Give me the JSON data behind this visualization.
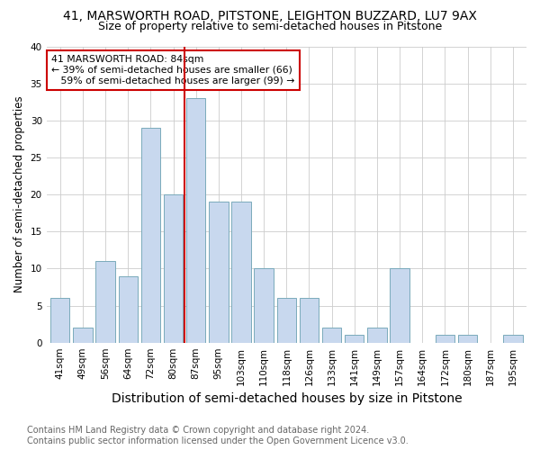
{
  "title": "41, MARSWORTH ROAD, PITSTONE, LEIGHTON BUZZARD, LU7 9AX",
  "subtitle": "Size of property relative to semi-detached houses in Pitstone",
  "xlabel": "Distribution of semi-detached houses by size in Pitstone",
  "ylabel": "Number of semi-detached properties",
  "categories": [
    "41sqm",
    "49sqm",
    "56sqm",
    "64sqm",
    "72sqm",
    "80sqm",
    "87sqm",
    "95sqm",
    "103sqm",
    "110sqm",
    "118sqm",
    "126sqm",
    "133sqm",
    "141sqm",
    "149sqm",
    "157sqm",
    "164sqm",
    "172sqm",
    "180sqm",
    "187sqm",
    "195sqm"
  ],
  "values": [
    6,
    2,
    11,
    9,
    29,
    20,
    33,
    19,
    19,
    10,
    6,
    6,
    2,
    1,
    2,
    10,
    0,
    1,
    1,
    0,
    1
  ],
  "bar_color": "#c8d8ee",
  "bar_edge_color": "#7aaabb",
  "highlight_index": 6,
  "highlight_line_color": "#cc0000",
  "annotation_text": "41 MARSWORTH ROAD: 84sqm\n← 39% of semi-detached houses are smaller (66)\n   59% of semi-detached houses are larger (99) →",
  "annotation_box_color": "#ffffff",
  "annotation_box_edge_color": "#cc0000",
  "ylim": [
    0,
    40
  ],
  "yticks": [
    0,
    5,
    10,
    15,
    20,
    25,
    30,
    35,
    40
  ],
  "footnote": "Contains HM Land Registry data © Crown copyright and database right 2024.\nContains public sector information licensed under the Open Government Licence v3.0.",
  "bg_color": "#ffffff",
  "plot_bg_color": "#ffffff",
  "title_fontsize": 10,
  "subtitle_fontsize": 9,
  "xlabel_fontsize": 10,
  "ylabel_fontsize": 8.5,
  "tick_fontsize": 7.5,
  "footnote_fontsize": 7
}
